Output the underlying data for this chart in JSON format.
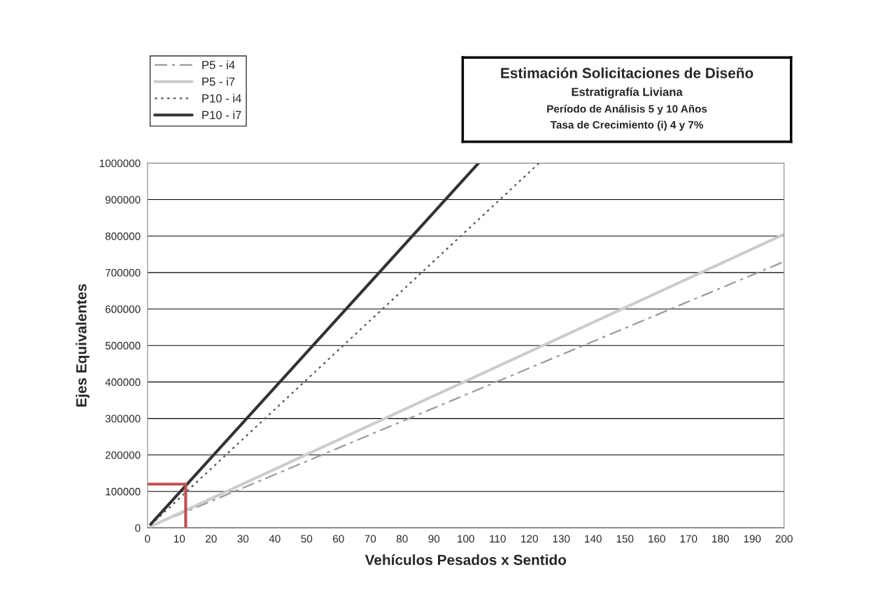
{
  "chart_data": {
    "type": "line",
    "title": "Estimación Solicitaciones de Diseño",
    "subtitle": "Estratigrafía Liviana",
    "annotations": [
      "Período de Análisis 5 y 10 Años",
      "Tasa de Crecimiento (i) 4 y 7%"
    ],
    "xlabel": "Vehículos Pesados x Sentido",
    "ylabel": "Ejes Equivalentes",
    "series": [
      {
        "name": "P5 - i4",
        "color": "#999999",
        "line_style": "dashed",
        "x": [
          1,
          200
        ],
        "values": [
          4000,
          730000
        ]
      },
      {
        "name": "P5 - i7",
        "color": "#cccccc",
        "line_style": "solid",
        "x": [
          1,
          200
        ],
        "values": [
          4000,
          805000
        ]
      },
      {
        "name": "P10 - i4",
        "color": "#555555",
        "line_style": "dotted",
        "x": [
          1,
          123
        ],
        "values": [
          8000,
          1000000
        ]
      },
      {
        "name": "P10 - i7",
        "color": "#333333",
        "line_style": "solid",
        "x": [
          1,
          104
        ],
        "values": [
          10000,
          1000000
        ]
      },
      {
        "color": "#c0504d",
        "line_style": "solid",
        "x": [
          0,
          12,
          12
        ],
        "values": [
          120000,
          120000,
          0
        ]
      }
    ],
    "xlim": [
      0,
      200
    ],
    "xticks": [
      0,
      10,
      20,
      30,
      40,
      50,
      60,
      70,
      80,
      90,
      100,
      110,
      120,
      130,
      140,
      150,
      160,
      170,
      180,
      190,
      200
    ],
    "ylim": [
      0,
      1000000
    ],
    "yticks": [
      0,
      100000,
      200000,
      300000,
      400000,
      500000,
      600000,
      700000,
      800000,
      900000,
      1000000
    ],
    "grid": "y",
    "legend": "top left"
  }
}
